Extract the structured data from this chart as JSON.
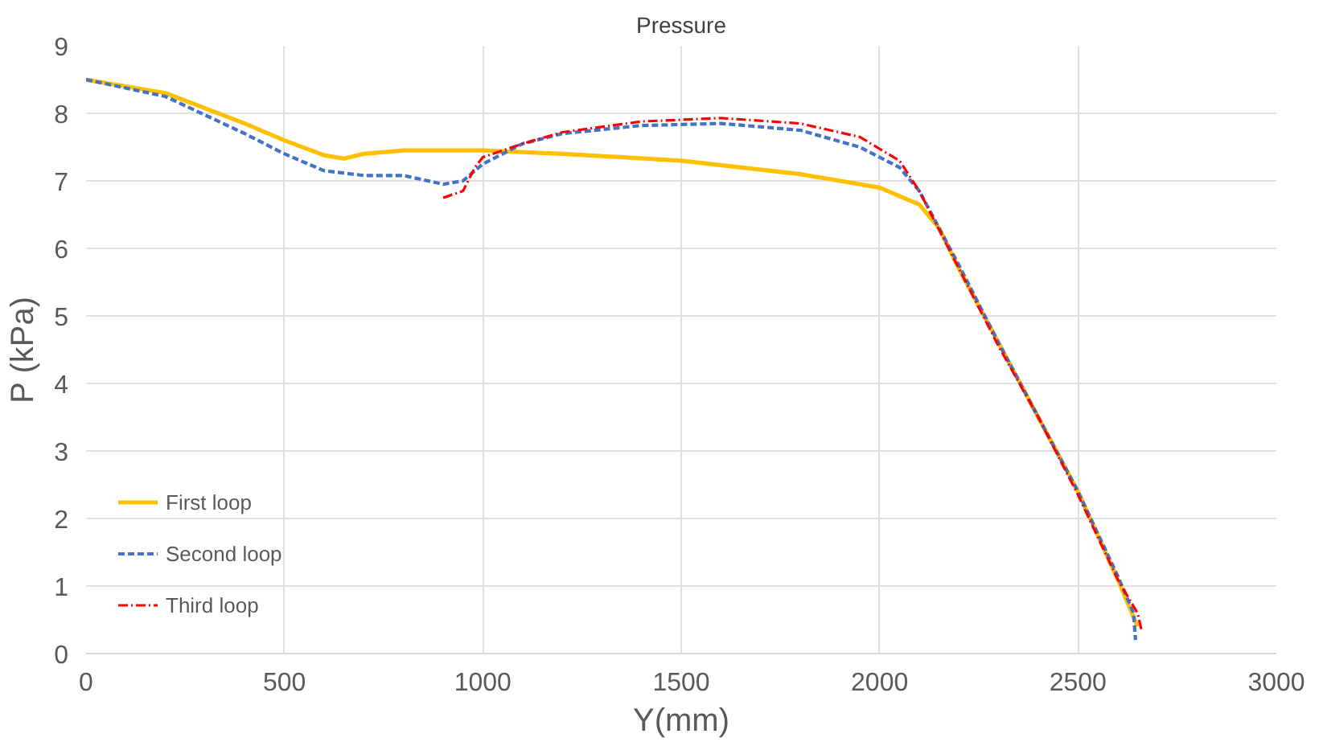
{
  "chart_data": {
    "type": "line",
    "title": "Pressure",
    "xlabel": "Y(mm)",
    "ylabel": "P (kPa)",
    "xlim": [
      0,
      3000
    ],
    "xticks": [
      0,
      500,
      1000,
      1500,
      2000,
      2500,
      3000
    ],
    "ylim": [
      0,
      9
    ],
    "yticks": [
      0,
      1,
      2,
      3,
      4,
      5,
      6,
      7,
      8,
      9
    ],
    "grid": true,
    "legend": "bottom left",
    "marker": "none",
    "series": [
      {
        "name": "First loop",
        "color": "#ffc000",
        "line_style": "solid",
        "x": [
          0,
          200,
          400,
          500,
          600,
          650,
          700,
          800,
          1000,
          1200,
          1500,
          1800,
          2000,
          2100,
          2150,
          2200,
          2300,
          2400,
          2500,
          2600,
          2650
        ],
        "values": [
          8.5,
          8.3,
          7.85,
          7.6,
          7.38,
          7.33,
          7.4,
          7.45,
          7.45,
          7.4,
          7.3,
          7.1,
          6.9,
          6.65,
          6.3,
          5.7,
          4.6,
          3.5,
          2.4,
          1.1,
          0.4
        ]
      },
      {
        "name": "Second loop",
        "color": "#4472c4",
        "line_style": "dashed",
        "x": [
          0,
          200,
          400,
          500,
          600,
          700,
          800,
          900,
          950,
          1000,
          1100,
          1200,
          1400,
          1600,
          1800,
          1950,
          2050,
          2100,
          2200,
          2300,
          2400,
          2500,
          2600,
          2640,
          2645
        ],
        "values": [
          8.5,
          8.25,
          7.7,
          7.4,
          7.15,
          7.08,
          7.08,
          6.95,
          7.0,
          7.25,
          7.55,
          7.7,
          7.82,
          7.85,
          7.75,
          7.5,
          7.2,
          6.85,
          5.75,
          4.6,
          3.5,
          2.4,
          1.15,
          0.6,
          0.2
        ]
      },
      {
        "name": "Third loop",
        "color": "#ff0000",
        "line_style": "dashdot",
        "x": [
          900,
          950,
          980,
          1000,
          1100,
          1200,
          1400,
          1600,
          1800,
          1950,
          2050,
          2100,
          2200,
          2300,
          2400,
          2500,
          2600,
          2650,
          2660
        ],
        "values": [
          6.75,
          6.85,
          7.2,
          7.35,
          7.55,
          7.72,
          7.88,
          7.93,
          7.85,
          7.65,
          7.3,
          6.85,
          5.7,
          4.55,
          3.5,
          2.35,
          1.1,
          0.6,
          0.35
        ]
      }
    ]
  }
}
